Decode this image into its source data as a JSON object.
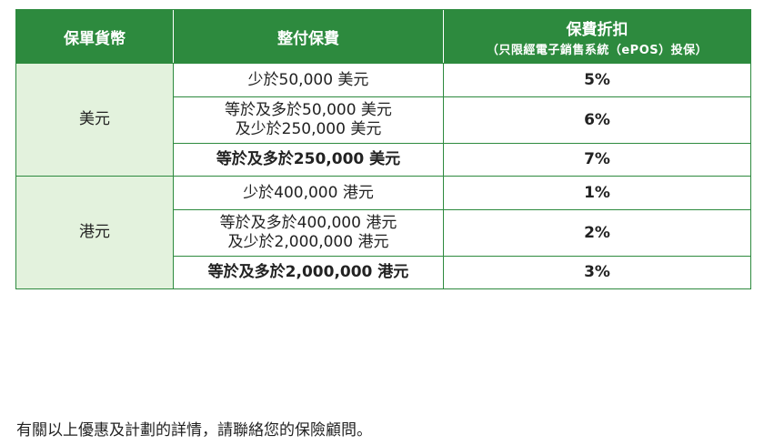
{
  "table": {
    "headers": {
      "currency": "保單貨幣",
      "premium": "整付保費",
      "discount": "保費折扣",
      "discount_note": "（只限經電子銷售系統（ePOS）投保）"
    },
    "groups": [
      {
        "currency": "美元",
        "rows": [
          {
            "amount": [
              "少於50,000 美元"
            ],
            "discount": "5%",
            "bold": false
          },
          {
            "amount": [
              "等於及多於50,000 美元",
              "及少於250,000 美元"
            ],
            "discount": "6%",
            "bold": false
          },
          {
            "amount": [
              "等於及多於250,000 美元"
            ],
            "discount": "7%",
            "bold": true
          }
        ]
      },
      {
        "currency": "港元",
        "rows": [
          {
            "amount": [
              "少於400,000 港元"
            ],
            "discount": "1%",
            "bold": false
          },
          {
            "amount": [
              "等於及多於400,000 港元",
              "及少於2,000,000 港元"
            ],
            "discount": "2%",
            "bold": false
          },
          {
            "amount": [
              "等於及多於2,000,000 港元"
            ],
            "discount": "3%",
            "bold": true
          }
        ]
      }
    ]
  },
  "footnote": "有關以上優惠及計劃的詳情，請聯絡您的保險顧問。",
  "colors": {
    "header_green": "#2d8a3e",
    "currency_cell_bg": "#e3f2dd"
  }
}
